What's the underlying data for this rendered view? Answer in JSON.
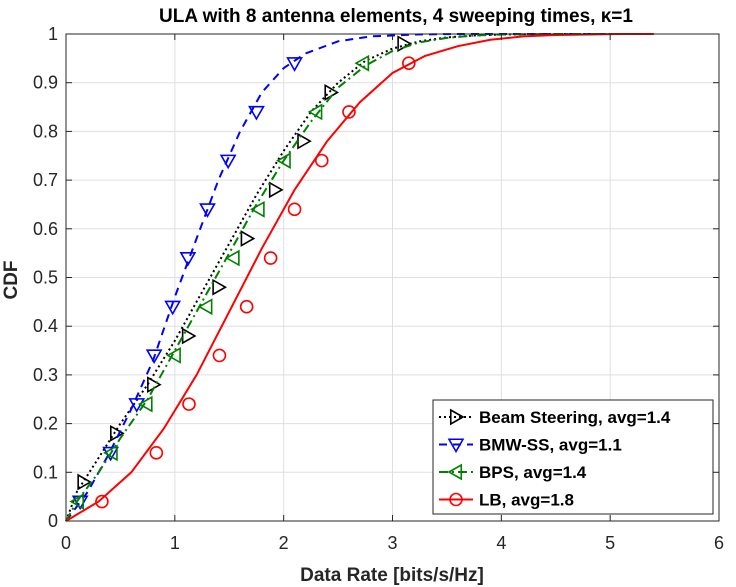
{
  "chart_data": {
    "type": "line",
    "title": "ULA with 8 antenna elements, 4 sweeping times, κ=1",
    "xlabel": "Data Rate [bits/s/Hz]",
    "ylabel": "CDF",
    "xlim": [
      0,
      6
    ],
    "ylim": [
      0,
      1
    ],
    "xticks": [
      "0",
      "1",
      "2",
      "3",
      "4",
      "5",
      "6"
    ],
    "yticks": [
      "0",
      "0.1",
      "0.2",
      "0.3",
      "0.4",
      "0.5",
      "0.6",
      "0.7",
      "0.8",
      "0.9",
      "1"
    ],
    "grid": true,
    "legend_position": "bottom-right",
    "series": [
      {
        "name": "Beam Steering, avg=1.4",
        "color": "#000000",
        "line_style": "dotted",
        "marker": "triangle-right",
        "x": [
          0,
          0.1,
          0.3,
          0.5,
          0.75,
          1.0,
          1.25,
          1.5,
          1.75,
          2.0,
          2.25,
          2.5,
          2.75,
          3.0,
          3.25,
          3.5,
          3.75,
          4.0,
          4.5,
          5.0,
          5.4
        ],
        "y": [
          0,
          0.06,
          0.13,
          0.2,
          0.28,
          0.37,
          0.47,
          0.57,
          0.67,
          0.76,
          0.84,
          0.9,
          0.945,
          0.97,
          0.985,
          0.993,
          0.997,
          0.999,
          1.0,
          1.0,
          1.0
        ],
        "markers_x": [
          0.16,
          0.46,
          0.8,
          1.12,
          1.4,
          1.66,
          1.92,
          2.18,
          2.43,
          3.1
        ],
        "markers_y": [
          0.08,
          0.18,
          0.28,
          0.38,
          0.48,
          0.58,
          0.68,
          0.78,
          0.88,
          0.98
        ]
      },
      {
        "name": "BMW-SS, avg=1.1",
        "color": "#0000ff",
        "line_style": "dashed",
        "marker": "triangle-down",
        "x": [
          0,
          0.2,
          0.4,
          0.6,
          0.8,
          1.0,
          1.2,
          1.4,
          1.6,
          1.8,
          2.0,
          2.2,
          2.5,
          2.8,
          3.2,
          3.6,
          4.0,
          4.5,
          5.0
        ],
        "y": [
          0,
          0.06,
          0.14,
          0.23,
          0.33,
          0.46,
          0.58,
          0.7,
          0.8,
          0.88,
          0.93,
          0.96,
          0.985,
          0.995,
          0.999,
          1.0,
          1.0,
          1.0,
          1.0
        ],
        "markers_x": [
          0.13,
          0.41,
          0.65,
          0.81,
          0.98,
          1.12,
          1.3,
          1.49,
          1.75,
          2.1
        ],
        "markers_y": [
          0.04,
          0.14,
          0.24,
          0.34,
          0.44,
          0.54,
          0.64,
          0.74,
          0.84,
          0.94
        ]
      },
      {
        "name": "BPS, avg=1.4",
        "color": "#008000",
        "line_style": "dashdot",
        "marker": "triangle-left",
        "x": [
          0,
          0.1,
          0.3,
          0.5,
          0.75,
          1.0,
          1.25,
          1.5,
          1.75,
          2.0,
          2.25,
          2.5,
          2.75,
          3.0,
          3.25,
          3.5,
          3.75,
          4.0,
          4.5,
          5.0,
          5.4
        ],
        "y": [
          0,
          0.04,
          0.1,
          0.17,
          0.25,
          0.35,
          0.45,
          0.55,
          0.65,
          0.74,
          0.82,
          0.89,
          0.935,
          0.965,
          0.983,
          0.992,
          0.997,
          0.999,
          1.0,
          1.0,
          1.0
        ],
        "markers_x": [
          0.11,
          0.42,
          0.74,
          1.0,
          1.29,
          1.54,
          1.77,
          2.01,
          2.3,
          2.73
        ],
        "markers_y": [
          0.04,
          0.14,
          0.24,
          0.34,
          0.44,
          0.54,
          0.64,
          0.74,
          0.84,
          0.94
        ]
      },
      {
        "name": "LB, avg=1.8",
        "color": "#ff0000",
        "line_style": "solid",
        "marker": "circle",
        "x": [
          0,
          0.3,
          0.6,
          0.9,
          1.2,
          1.5,
          1.8,
          2.1,
          2.4,
          2.7,
          3.0,
          3.3,
          3.6,
          3.9,
          4.2,
          4.5,
          4.8,
          5.1,
          5.4
        ],
        "y": [
          0,
          0.04,
          0.1,
          0.19,
          0.3,
          0.43,
          0.56,
          0.68,
          0.78,
          0.86,
          0.92,
          0.955,
          0.975,
          0.988,
          0.995,
          0.998,
          0.999,
          1.0,
          1.0
        ],
        "markers_x": [
          0.33,
          0.83,
          1.13,
          1.41,
          1.66,
          1.88,
          2.1,
          2.35,
          2.6,
          3.15
        ],
        "markers_y": [
          0.04,
          0.14,
          0.24,
          0.34,
          0.44,
          0.54,
          0.64,
          0.74,
          0.84,
          0.94
        ]
      }
    ]
  }
}
